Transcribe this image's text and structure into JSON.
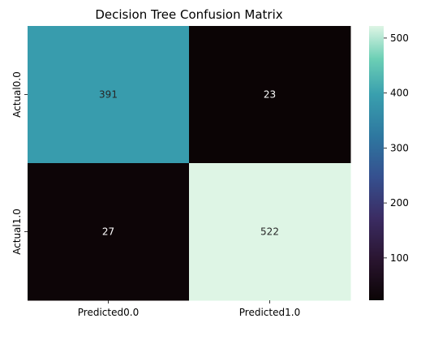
{
  "chart_data": {
    "type": "heatmap",
    "title": "Decision Tree Confusion Matrix",
    "x_categories": [
      "Predicted0.0",
      "Predicted1.0"
    ],
    "y_categories": [
      "Actual0.0",
      "Actual1.0"
    ],
    "values": [
      [
        391,
        23
      ],
      [
        27,
        522
      ]
    ],
    "colorbar": {
      "min": 23,
      "max": 522,
      "ticks": [
        100,
        200,
        300,
        400,
        500
      ],
      "colormap": "mako"
    },
    "grid": false
  }
}
